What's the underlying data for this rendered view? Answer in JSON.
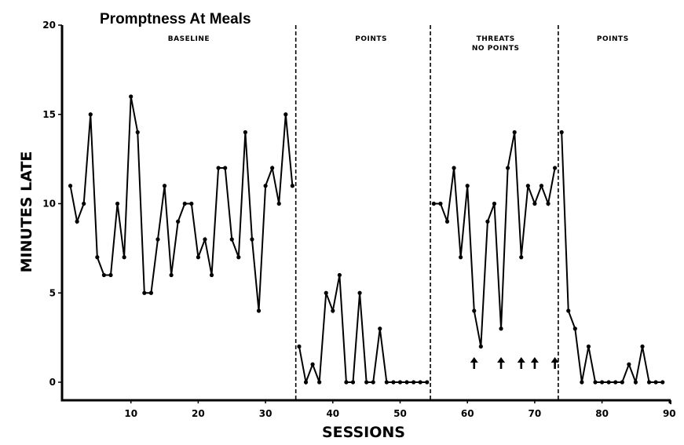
{
  "chart_data": {
    "type": "line",
    "title": "Promptness At Meals",
    "xlabel": "SESSIONS",
    "ylabel": "MINUTES LATE",
    "xlim": [
      0,
      90
    ],
    "ylim": [
      0,
      20
    ],
    "x_ticks": [
      10,
      20,
      30,
      40,
      50,
      60,
      70,
      80,
      90
    ],
    "x_tick_labels": [
      "10",
      "20",
      "30",
      "40",
      "50",
      "60",
      "70",
      "80",
      "90"
    ],
    "y_ticks": [
      0,
      5,
      10,
      15,
      20
    ],
    "y_tick_labels": [
      "0",
      "5",
      "10",
      "15",
      "20"
    ],
    "grid": false,
    "legend": null,
    "phase_change_lines": [
      34.5,
      54.5,
      73.5
    ],
    "phases": [
      {
        "name": "baseline",
        "label_lines": [
          "BASELINE"
        ],
        "start": 1,
        "end": 34,
        "values": [
          11,
          9,
          10,
          15,
          7,
          6,
          6,
          10,
          7,
          16,
          14,
          5,
          5,
          8,
          11,
          6,
          9,
          10,
          10,
          7,
          8,
          6,
          12,
          12,
          8,
          7,
          14,
          8,
          4,
          11,
          12,
          10,
          15,
          11
        ]
      },
      {
        "name": "points-1",
        "label_lines": [
          "POINTS"
        ],
        "start": 35,
        "end": 54,
        "values": [
          2,
          0,
          1,
          0,
          5,
          4,
          6,
          0,
          0,
          5,
          0,
          0,
          3,
          0,
          0,
          0,
          0,
          0,
          0,
          0
        ]
      },
      {
        "name": "threats-no-points",
        "label_lines": [
          "THREATS",
          "NO POINTS"
        ],
        "start": 55,
        "end": 73,
        "values": [
          10,
          10,
          9,
          12,
          7,
          11,
          4,
          2,
          9,
          10,
          3,
          12,
          14,
          7,
          11,
          10,
          11,
          10,
          12
        ]
      },
      {
        "name": "points-2",
        "label_lines": [
          "POINTS"
        ],
        "start": 74,
        "end": 89,
        "values": [
          14,
          4,
          3,
          0,
          2,
          0,
          0,
          0,
          0,
          0,
          1,
          0,
          2,
          0,
          0,
          0
        ]
      }
    ],
    "annotations": {
      "arrow_sessions": [
        61,
        65,
        68,
        70,
        73
      ],
      "arrow_meaning": "up-arrow markers"
    }
  }
}
